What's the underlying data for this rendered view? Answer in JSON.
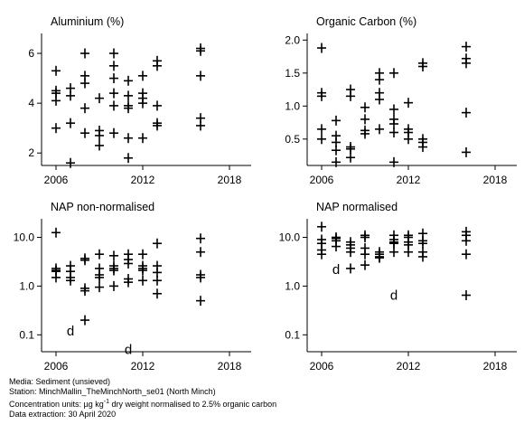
{
  "chart_data": [
    {
      "type": "scatter",
      "title": "Aluminium (%)",
      "yscale": "linear",
      "ylim": [
        1.5,
        6.8
      ],
      "yticks": [
        2,
        4,
        6
      ],
      "xlim": [
        2005,
        2019.5
      ],
      "xticks": [
        2006,
        2012,
        2018
      ],
      "marker": "+",
      "points": [
        [
          2006,
          5.3
        ],
        [
          2006,
          4.5
        ],
        [
          2006,
          4.4
        ],
        [
          2006,
          4.1
        ],
        [
          2006,
          3.0
        ],
        [
          2007,
          4.6
        ],
        [
          2007,
          4.3
        ],
        [
          2007,
          3.2
        ],
        [
          2007,
          1.6
        ],
        [
          2008,
          6.0
        ],
        [
          2008,
          5.1
        ],
        [
          2008,
          4.8
        ],
        [
          2008,
          3.8
        ],
        [
          2008,
          2.8
        ],
        [
          2009,
          4.2
        ],
        [
          2009,
          2.9
        ],
        [
          2009,
          2.7
        ],
        [
          2009,
          2.3
        ],
        [
          2010,
          6.0
        ],
        [
          2010,
          5.5
        ],
        [
          2010,
          5.0
        ],
        [
          2010,
          4.4
        ],
        [
          2010,
          3.9
        ],
        [
          2010,
          2.8
        ],
        [
          2011,
          4.9
        ],
        [
          2011,
          4.3
        ],
        [
          2011,
          3.9
        ],
        [
          2011,
          3.8
        ],
        [
          2011,
          2.6
        ],
        [
          2011,
          1.8
        ],
        [
          2012,
          5.1
        ],
        [
          2012,
          4.4
        ],
        [
          2012,
          4.2
        ],
        [
          2012,
          4.0
        ],
        [
          2012,
          2.6
        ],
        [
          2013,
          5.7
        ],
        [
          2013,
          5.5
        ],
        [
          2013,
          3.9
        ],
        [
          2013,
          3.2
        ],
        [
          2013,
          3.1
        ],
        [
          2016,
          6.2
        ],
        [
          2016,
          6.1
        ],
        [
          2016,
          5.1
        ],
        [
          2016,
          3.4
        ],
        [
          2016,
          3.1
        ]
      ],
      "below_detection": []
    },
    {
      "type": "scatter",
      "title": "Organic Carbon (%)",
      "yscale": "linear",
      "ylim": [
        0.1,
        2.1
      ],
      "yticks": [
        0.5,
        1.0,
        1.5,
        2.0
      ],
      "ytick_labels": [
        "0.5",
        "1.0",
        "1.5",
        "2.0"
      ],
      "xlim": [
        2005,
        2019.5
      ],
      "xticks": [
        2006,
        2012,
        2018
      ],
      "marker": "+",
      "points": [
        [
          2006,
          1.88
        ],
        [
          2006,
          1.2
        ],
        [
          2006,
          1.15
        ],
        [
          2006,
          0.65
        ],
        [
          2006,
          0.5
        ],
        [
          2007,
          0.78
        ],
        [
          2007,
          0.55
        ],
        [
          2007,
          0.45
        ],
        [
          2007,
          0.33
        ],
        [
          2007,
          0.15
        ],
        [
          2008,
          1.25
        ],
        [
          2008,
          1.15
        ],
        [
          2008,
          0.38
        ],
        [
          2008,
          0.35
        ],
        [
          2008,
          0.22
        ],
        [
          2009,
          0.98
        ],
        [
          2009,
          0.8
        ],
        [
          2009,
          0.63
        ],
        [
          2009,
          0.58
        ],
        [
          2010,
          1.5
        ],
        [
          2010,
          1.4
        ],
        [
          2010,
          1.2
        ],
        [
          2010,
          1.1
        ],
        [
          2010,
          0.65
        ],
        [
          2011,
          1.5
        ],
        [
          2011,
          0.95
        ],
        [
          2011,
          0.8
        ],
        [
          2011,
          0.73
        ],
        [
          2011,
          0.6
        ],
        [
          2011,
          0.15
        ],
        [
          2012,
          1.05
        ],
        [
          2012,
          0.65
        ],
        [
          2012,
          0.6
        ],
        [
          2012,
          0.5
        ],
        [
          2013,
          1.65
        ],
        [
          2013,
          1.6
        ],
        [
          2013,
          0.5
        ],
        [
          2013,
          0.45
        ],
        [
          2013,
          0.38
        ],
        [
          2016,
          1.9
        ],
        [
          2016,
          1.72
        ],
        [
          2016,
          1.65
        ],
        [
          2016,
          0.9
        ],
        [
          2016,
          0.3
        ]
      ],
      "below_detection": []
    },
    {
      "type": "scatter",
      "title": "NAP non-normalised",
      "yscale": "log",
      "ylim": [
        0.045,
        24
      ],
      "yticks": [
        0.1,
        1.0,
        10.0
      ],
      "ytick_labels": [
        "0.1",
        "1.0",
        "10.0"
      ],
      "xlim": [
        2005,
        2019.5
      ],
      "xticks": [
        2006,
        2012,
        2018
      ],
      "marker": "+",
      "points": [
        [
          2006,
          12.5
        ],
        [
          2006,
          2.3
        ],
        [
          2006,
          2.1
        ],
        [
          2006,
          2.0
        ],
        [
          2006,
          1.5
        ],
        [
          2007,
          2.6
        ],
        [
          2007,
          2.0
        ],
        [
          2007,
          1.5
        ],
        [
          2007,
          1.3
        ],
        [
          2008,
          3.7
        ],
        [
          2008,
          3.4
        ],
        [
          2008,
          0.9
        ],
        [
          2008,
          0.8
        ],
        [
          2008,
          0.2
        ],
        [
          2009,
          4.5
        ],
        [
          2009,
          2.3
        ],
        [
          2009,
          1.7
        ],
        [
          2009,
          1.5
        ],
        [
          2009,
          0.95
        ],
        [
          2010,
          4.2
        ],
        [
          2010,
          2.6
        ],
        [
          2010,
          2.3
        ],
        [
          2010,
          2.1
        ],
        [
          2010,
          1.0
        ],
        [
          2011,
          4.5
        ],
        [
          2011,
          3.5
        ],
        [
          2011,
          2.9
        ],
        [
          2011,
          1.4
        ],
        [
          2011,
          1.2
        ],
        [
          2012,
          4.5
        ],
        [
          2012,
          2.6
        ],
        [
          2012,
          2.3
        ],
        [
          2012,
          2.1
        ],
        [
          2012,
          1.3
        ],
        [
          2013,
          7.5
        ],
        [
          2013,
          2.6
        ],
        [
          2013,
          1.9
        ],
        [
          2013,
          1.3
        ],
        [
          2013,
          0.7
        ],
        [
          2016,
          9.5
        ],
        [
          2016,
          5.0
        ],
        [
          2016,
          1.7
        ],
        [
          2016,
          1.5
        ],
        [
          2016,
          0.5
        ]
      ],
      "below_detection": [
        [
          2007,
          0.12
        ],
        [
          2011,
          0.05
        ]
      ],
      "below_detection_marker": "d"
    },
    {
      "type": "scatter",
      "title": "NAP normalised",
      "yscale": "log",
      "ylim": [
        0.045,
        24
      ],
      "yticks": [
        0.1,
        1.0,
        10.0
      ],
      "ytick_labels": [
        "0.1",
        "1.0",
        "10.0"
      ],
      "xlim": [
        2005,
        2019.5
      ],
      "xticks": [
        2006,
        2012,
        2018
      ],
      "marker": "+",
      "points": [
        [
          2006,
          16.5
        ],
        [
          2006,
          9.0
        ],
        [
          2006,
          7.5
        ],
        [
          2006,
          5.5
        ],
        [
          2006,
          4.5
        ],
        [
          2007,
          10.0
        ],
        [
          2007,
          9.5
        ],
        [
          2007,
          8.5
        ],
        [
          2007,
          6.5
        ],
        [
          2008,
          8.0
        ],
        [
          2008,
          7.0
        ],
        [
          2008,
          6.0
        ],
        [
          2008,
          5.0
        ],
        [
          2008,
          2.3
        ],
        [
          2009,
          11.0
        ],
        [
          2009,
          10.0
        ],
        [
          2009,
          6.0
        ],
        [
          2009,
          4.5
        ],
        [
          2009,
          2.7
        ],
        [
          2010,
          5.0
        ],
        [
          2010,
          4.5
        ],
        [
          2010,
          4.0
        ],
        [
          2010,
          3.8
        ],
        [
          2011,
          11.0
        ],
        [
          2011,
          9.0
        ],
        [
          2011,
          8.0
        ],
        [
          2011,
          7.5
        ],
        [
          2011,
          5.0
        ],
        [
          2012,
          11.0
        ],
        [
          2012,
          10.0
        ],
        [
          2012,
          8.0
        ],
        [
          2012,
          7.0
        ],
        [
          2012,
          5.0
        ],
        [
          2013,
          12.0
        ],
        [
          2013,
          8.5
        ],
        [
          2013,
          7.5
        ],
        [
          2013,
          5.0
        ],
        [
          2013,
          4.0
        ],
        [
          2016,
          13.0
        ],
        [
          2016,
          11.0
        ],
        [
          2016,
          8.5
        ],
        [
          2016,
          4.5
        ],
        [
          2016,
          0.65
        ]
      ],
      "below_detection": [
        [
          2007,
          2.2
        ],
        [
          2011,
          0.65
        ]
      ],
      "below_detection_marker": "d"
    }
  ],
  "footer": {
    "media": "Media: Sediment (unsieved)",
    "station": "Station: MinchMallin_TheMinchNorth_se01 (North Minch)",
    "units_prefix": "Concentration units:  µg kg",
    "units_superscript": "-1",
    "units_suffix": " dry weight normalised to 2.5% organic carbon",
    "extraction": "Data extraction: 30 April 2020"
  }
}
